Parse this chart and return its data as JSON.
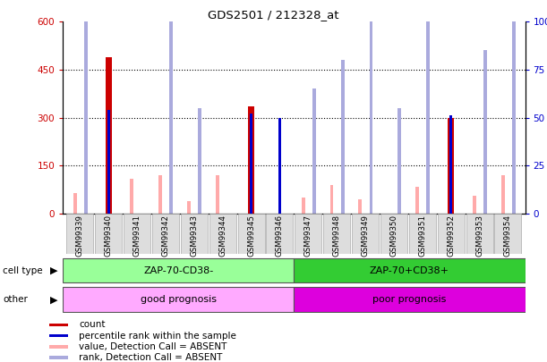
{
  "title": "GDS2501 / 212328_at",
  "samples": [
    "GSM99339",
    "GSM99340",
    "GSM99341",
    "GSM99342",
    "GSM99343",
    "GSM99344",
    "GSM99345",
    "GSM99346",
    "GSM99347",
    "GSM99348",
    "GSM99349",
    "GSM99350",
    "GSM99351",
    "GSM99352",
    "GSM99353",
    "GSM99354"
  ],
  "count": [
    0,
    490,
    0,
    0,
    0,
    0,
    335,
    0,
    0,
    0,
    0,
    0,
    0,
    300,
    0,
    0
  ],
  "percentile_rank": [
    0,
    54,
    0,
    0,
    0,
    0,
    52,
    50,
    0,
    0,
    0,
    0,
    0,
    51,
    0,
    0
  ],
  "value_absent": [
    65,
    0,
    110,
    120,
    40,
    120,
    0,
    0,
    50,
    90,
    45,
    0,
    85,
    0,
    55,
    120
  ],
  "rank_absent": [
    135,
    0,
    0,
    165,
    55,
    0,
    0,
    0,
    65,
    80,
    100,
    55,
    135,
    0,
    85,
    135
  ],
  "cell_type_groups": [
    {
      "label": "ZAP-70-CD38-",
      "start": 0,
      "end": 8,
      "color": "#99ff99"
    },
    {
      "label": "ZAP-70+CD38+",
      "start": 8,
      "end": 16,
      "color": "#33cc33"
    }
  ],
  "other_groups": [
    {
      "label": "good prognosis",
      "start": 0,
      "end": 8,
      "color": "#ffaaff"
    },
    {
      "label": "poor prognosis",
      "start": 8,
      "end": 16,
      "color": "#dd00dd"
    }
  ],
  "ylim_left": [
    0,
    600
  ],
  "ylim_right": [
    0,
    100
  ],
  "yticks_left": [
    0,
    150,
    300,
    450,
    600
  ],
  "ytick_labels_left": [
    "0",
    "150",
    "300",
    "450",
    "600"
  ],
  "yticks_right": [
    0,
    25,
    50,
    75,
    100
  ],
  "ytick_labels_right": [
    "0",
    "25",
    "50",
    "75",
    "100%"
  ],
  "count_color": "#cc0000",
  "percentile_color": "#0000cc",
  "value_absent_color": "#ffaaaa",
  "rank_absent_color": "#aaaadd",
  "background_color": "#ffffff",
  "legend_items": [
    {
      "label": "count",
      "color": "#cc0000"
    },
    {
      "label": "percentile rank within the sample",
      "color": "#0000cc"
    },
    {
      "label": "value, Detection Call = ABSENT",
      "color": "#ffaaaa"
    },
    {
      "label": "rank, Detection Call = ABSENT",
      "color": "#aaaadd"
    }
  ]
}
